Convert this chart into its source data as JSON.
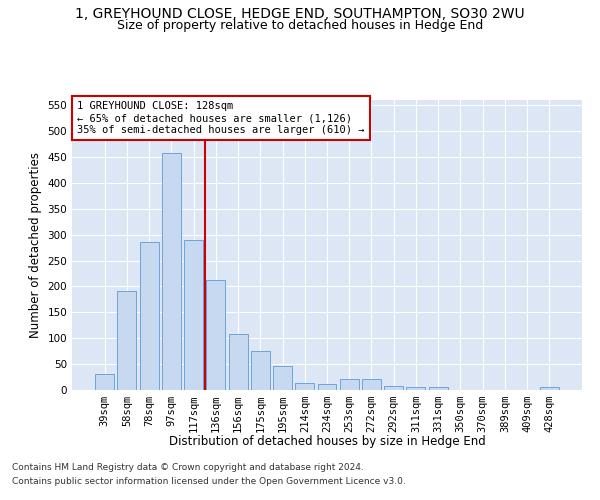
{
  "title": "1, GREYHOUND CLOSE, HEDGE END, SOUTHAMPTON, SO30 2WU",
  "subtitle": "Size of property relative to detached houses in Hedge End",
  "xlabel": "Distribution of detached houses by size in Hedge End",
  "ylabel": "Number of detached properties",
  "categories": [
    "39sqm",
    "58sqm",
    "78sqm",
    "97sqm",
    "117sqm",
    "136sqm",
    "156sqm",
    "175sqm",
    "195sqm",
    "214sqm",
    "234sqm",
    "253sqm",
    "272sqm",
    "292sqm",
    "311sqm",
    "331sqm",
    "350sqm",
    "370sqm",
    "389sqm",
    "409sqm",
    "428sqm"
  ],
  "values": [
    30,
    192,
    285,
    458,
    290,
    213,
    108,
    75,
    46,
    13,
    12,
    22,
    22,
    8,
    5,
    5,
    0,
    0,
    0,
    0,
    5
  ],
  "bar_color": "#c6d9f0",
  "bar_edge_color": "#5b9bd5",
  "vline_position": 4.5,
  "vline_color": "#cc0000",
  "annotation_text": "1 GREYHOUND CLOSE: 128sqm\n← 65% of detached houses are smaller (1,126)\n35% of semi-detached houses are larger (610) →",
  "annotation_box_facecolor": "#ffffff",
  "annotation_box_edgecolor": "#cc0000",
  "ylim": [
    0,
    560
  ],
  "yticks": [
    0,
    50,
    100,
    150,
    200,
    250,
    300,
    350,
    400,
    450,
    500,
    550
  ],
  "background_color": "#dce6f5",
  "grid_color": "#ffffff",
  "footer1": "Contains HM Land Registry data © Crown copyright and database right 2024.",
  "footer2": "Contains public sector information licensed under the Open Government Licence v3.0.",
  "title_fontsize": 10,
  "subtitle_fontsize": 9,
  "xlabel_fontsize": 8.5,
  "ylabel_fontsize": 8.5,
  "tick_fontsize": 7.5,
  "annotation_fontsize": 7.5,
  "footer_fontsize": 6.5
}
